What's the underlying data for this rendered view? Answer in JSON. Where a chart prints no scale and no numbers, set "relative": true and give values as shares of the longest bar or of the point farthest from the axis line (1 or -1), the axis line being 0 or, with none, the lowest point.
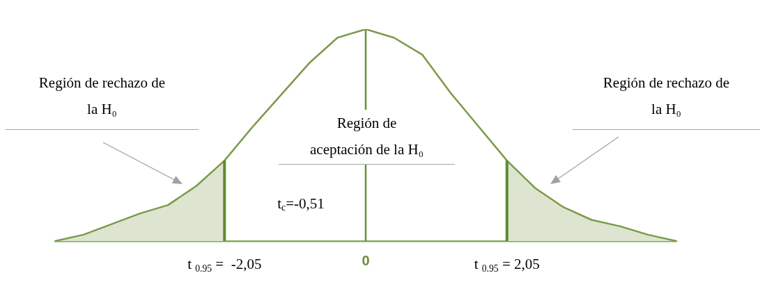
{
  "chart_data": {
    "type": "line",
    "relative": true,
    "tick_labels": "x",
    "legend": false,
    "marker": "none",
    "categories": [
      null,
      null,
      null,
      null,
      null,
      null,
      "t $_{0.95}$ =  -2,05",
      null,
      null,
      null,
      null,
      "0",
      null,
      null,
      null,
      null,
      "t $_{0.95}$ = 2,05",
      null,
      null,
      null,
      null,
      null,
      null
    ],
    "series": [
      {
        "type": "area",
        "color": "#dde5d0",
        "values": [
          0,
          0.03,
          0.08,
          0.13,
          0.17,
          0.26,
          0.38,
          null,
          null,
          null,
          null,
          null,
          null,
          null,
          null,
          null,
          null,
          null,
          null,
          null,
          null,
          null,
          null
        ]
      },
      {
        "type": "area",
        "color": "#dde5d0",
        "values": [
          null,
          null,
          null,
          null,
          null,
          null,
          null,
          null,
          null,
          null,
          null,
          null,
          null,
          null,
          null,
          null,
          0.38,
          0.25,
          0.16,
          0.1,
          0.07,
          0.03,
          0
        ]
      },
      {
        "color": "#7a9a48",
        "values": [
          0,
          0.03,
          0.08,
          0.13,
          0.17,
          0.26,
          0.38,
          0.54,
          0.69,
          0.84,
          0.96,
          1,
          0.96,
          0.88,
          0.7,
          0.54,
          0.38,
          0.25,
          0.16,
          0.1,
          0.07,
          0.03,
          0
        ]
      }
    ],
    "ref_lines": [
      {
        "axis": "x",
        "value": "t $_{0.95}$ =  -2,05",
        "color": "#5f8a2e",
        "line_style": "solid"
      },
      {
        "axis": "x",
        "value": "t $_{0.95}$ = 2,05",
        "color": "#5f8a2e",
        "line_style": "solid"
      },
      {
        "axis": "x",
        "value": "0",
        "color": "#6a8f3a",
        "line_style": "solid"
      }
    ],
    "annotations": [
      "Región de rechazo de\nla H₀",
      "Región de\naceptación de la H₀",
      "Región de rechazo de\nla H₀",
      "t$_{c}$=-0,51"
    ]
  }
}
